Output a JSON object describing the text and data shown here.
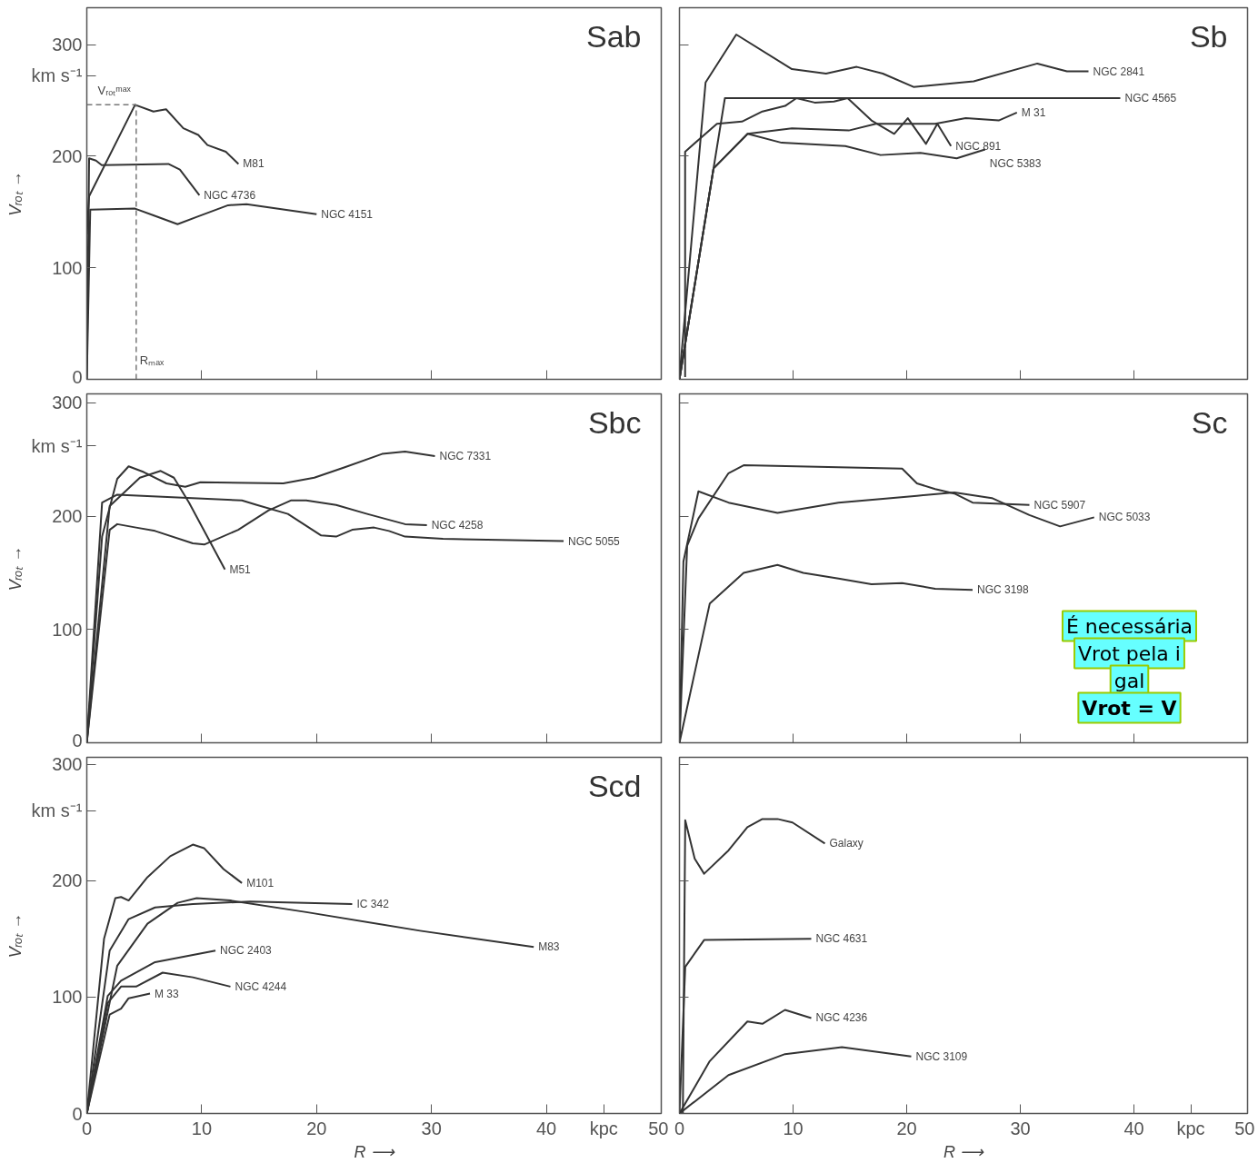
{
  "chart_data": [
    {
      "type": "line",
      "title": "Sab",
      "xlim": [
        0,
        50
      ],
      "ylim": [
        0,
        333
      ],
      "xticks": [
        10,
        20,
        30,
        40
      ],
      "yticks": [
        0,
        100,
        200,
        {
          "value": 272,
          "label": "km s⁻¹"
        },
        300
      ],
      "tick_labels": "y",
      "ylabel": "Vᵣₒₜ →",
      "line_style": "solid",
      "series": [
        {
          "name": "M81",
          "color": "#333333",
          "x": [
            0,
            0.2,
            4.2,
            5.8,
            6.9,
            8.4,
            9.7,
            10.5,
            12.1,
            13.2
          ],
          "values": [
            130,
            164,
            246,
            240,
            242,
            225,
            219,
            210,
            204,
            193
          ]
        },
        {
          "name": "NGC 4736",
          "color": "#333333",
          "x": [
            0,
            0.2,
            0.8,
            1.3,
            7.1,
            8.1,
            9.8
          ],
          "values": [
            0,
            198,
            196,
            192,
            193,
            188,
            165
          ]
        },
        {
          "name": "NGC 4151",
          "color": "#333333",
          "x": [
            0,
            0.3,
            4.2,
            5.8,
            7.9,
            9.7,
            12.3,
            13.9,
            20
          ],
          "values": [
            0,
            152,
            153,
            147,
            139,
            146,
            156,
            157,
            148
          ]
        }
      ],
      "ref_lines": [
        {
          "axis": "y",
          "value": 246,
          "label": "Vᵣₒₜᵐᵃˣ",
          "color": "#777777",
          "line_style": "dashed"
        },
        {
          "axis": "x",
          "value": 4.3,
          "label": "Rₘₐₓ",
          "color": "#777777",
          "line_style": "dashed"
        }
      ]
    },
    {
      "type": "line",
      "title": "Sb",
      "xlim": [
        0,
        50
      ],
      "ylim": [
        0,
        333
      ],
      "xticks": [
        10,
        20,
        30,
        40
      ],
      "yticks": [
        100,
        200,
        300
      ],
      "tick_labels": false,
      "line_style": "solid",
      "series": [
        {
          "name": "NGC 2841",
          "color": "#333333",
          "x": [
            0,
            2.3,
            5.0,
            9.9,
            12.9,
            15.6,
            17.9,
            20.6,
            25.9,
            31.5,
            34.1,
            36
          ],
          "values": [
            2,
            266,
            309,
            278,
            274,
            280,
            274,
            262,
            267,
            283,
            276,
            276
          ]
        },
        {
          "name": "NGC 4565",
          "color": "#333333",
          "x": [
            0,
            4.0,
            38.8
          ],
          "values": [
            0,
            252,
            252
          ]
        },
        {
          "name": "M 31",
          "color": "#333333",
          "x": [
            0,
            3.0,
            6.0,
            9.9,
            14.9,
            17.3,
            22.5,
            25.2,
            28.1,
            29.7
          ],
          "values": [
            0,
            189,
            220,
            225,
            223,
            229,
            229,
            234,
            232,
            239
          ]
        },
        {
          "name": "NGC 891",
          "color": "#333333",
          "x": [
            0.5,
            0.5,
            3.3,
            5.5,
            7.3,
            9.3,
            10.3,
            11.9,
            13.6,
            14.8,
            16.9,
            18.9,
            20.1,
            21.7,
            22.7,
            23.9
          ],
          "values": [
            2,
            204,
            229,
            231,
            240,
            245,
            252,
            248,
            249,
            252,
            232,
            220,
            234,
            211,
            229,
            209
          ]
        },
        {
          "name": "NGC 5383",
          "color": "#333333",
          "x": [
            0,
            3.0,
            6.0,
            9.0,
            14.6,
            17.7,
            21.2,
            24.4,
            26.9
          ],
          "values": [
            0,
            189,
            220,
            212,
            209,
            201,
            203,
            198,
            206
          ]
        }
      ]
    },
    {
      "type": "line",
      "title": "Sbc",
      "xlim": [
        0,
        50
      ],
      "ylim": [
        0,
        308
      ],
      "xticks": [
        10,
        20,
        30,
        40
      ],
      "yticks": [
        0,
        100,
        200,
        {
          "value": 262,
          "label": "km s⁻¹"
        },
        300
      ],
      "tick_labels": "y",
      "ylabel": "Vᵣₒₜ →",
      "line_style": "solid",
      "series": [
        {
          "name": "NGC 7331",
          "color": "#333333",
          "x": [
            0,
            1.33,
            2.65,
            3.64,
            4.95,
            6.93,
            8.57,
            9.89,
            17.1,
            19.8,
            22.4,
            25.7,
            27.7,
            30.3
          ],
          "values": [
            0,
            182,
            233,
            244,
            239,
            229,
            226,
            230,
            229,
            234,
            243,
            255,
            257,
            253
          ]
        },
        {
          "name": "NGC 4258",
          "color": "#333333",
          "x": [
            0,
            1.99,
            2.65,
            4.29,
            5.94,
            9.23,
            10.22,
            13.18,
            15.8,
            17.8,
            19.1,
            21.7,
            24.4,
            27.7,
            29.6
          ],
          "values": [
            0,
            188,
            193,
            190,
            187,
            176,
            175,
            188,
            205,
            214,
            214,
            210,
            202,
            193,
            192
          ]
        },
        {
          "name": "NGC 5055",
          "color": "#333333",
          "x": [
            0,
            1.33,
            2.65,
            13.5,
            14.8,
            17.5,
            20.4,
            21.7,
            23.1,
            25.0,
            26.3,
            27.7,
            31.0,
            41.5
          ],
          "values": [
            0,
            212,
            219,
            214,
            210,
            202,
            183,
            182,
            188,
            190,
            187,
            182,
            180,
            178
          ]
        },
        {
          "name": "M51",
          "color": "#333333",
          "x": [
            0,
            1.99,
            4.62,
            6.43,
            7.58,
            8.9,
            12.02
          ],
          "values": [
            0,
            209,
            234,
            240,
            234,
            212,
            153
          ]
        }
      ]
    },
    {
      "type": "line",
      "title": "Sc",
      "xlim": [
        0,
        50
      ],
      "ylim": [
        0,
        308
      ],
      "xticks": [
        10,
        20,
        30,
        40
      ],
      "yticks": [
        100,
        200,
        300
      ],
      "tick_labels": false,
      "line_style": "solid",
      "series": [
        {
          "name": "NGC 5907",
          "color": "#333333",
          "x": [
            0,
            0.68,
            1.67,
            4.32,
            5.65,
            19.6,
            20.9,
            22.5,
            24.2,
            25.8,
            30.8
          ],
          "values": [
            0,
            174,
            198,
            238,
            245,
            242,
            229,
            224,
            220,
            212,
            210
          ]
        },
        {
          "name": "NGC 5033",
          "color": "#333333",
          "x": [
            0,
            0.35,
            1.67,
            4.32,
            8.63,
            14.0,
            20.9,
            24.2,
            27.5,
            30.8,
            33.5,
            36.5
          ],
          "values": [
            0,
            160,
            222,
            212,
            203,
            212,
            218,
            221,
            216,
            201,
            191,
            199
          ]
        },
        {
          "name": "NGC 3198",
          "color": "#333333",
          "x": [
            0,
            2.67,
            5.65,
            8.63,
            10.9,
            14.0,
            16.9,
            19.6,
            22.5,
            25.8
          ],
          "values": [
            0,
            123,
            150,
            157,
            150,
            145,
            140,
            141,
            136,
            135
          ]
        }
      ],
      "annotations": [
        "É necessária",
        "Vrot pela i",
        "gal",
        "Vrot = V"
      ]
    },
    {
      "type": "line",
      "title": "Scd",
      "xlim": [
        0,
        50
      ],
      "ylim": [
        0,
        306
      ],
      "xticks": [
        0,
        10,
        20,
        30,
        40,
        {
          "value": 45,
          "label": "kpc"
        },
        50
      ],
      "yticks": [
        0,
        100,
        200,
        {
          "value": 260,
          "label": "km s⁻¹"
        },
        300
      ],
      "xlabel": "R ⟶",
      "ylabel": "Vᵣₒₜ →",
      "line_style": "solid",
      "series": [
        {
          "name": "M101",
          "color": "#333333",
          "x": [
            0,
            1.5,
            2.48,
            2.98,
            3.64,
            5.28,
            7.26,
            9.23,
            10.2,
            11.9,
            13.5
          ],
          "values": [
            0,
            150,
            185,
            186,
            183,
            203,
            221,
            231,
            228,
            210,
            198
          ]
        },
        {
          "name": "IC 342",
          "color": "#333333",
          "x": [
            0,
            1.99,
            3.64,
            5.94,
            9.23,
            14.2,
            23.1
          ],
          "values": [
            0,
            140,
            167,
            177,
            180,
            182,
            180
          ]
        },
        {
          "name": "M83",
          "color": "#333333",
          "x": [
            0,
            2.65,
            5.28,
            7.91,
            9.56,
            12.5,
            19.1,
            29.0,
            38.9
          ],
          "values": [
            0,
            127,
            163,
            181,
            185,
            183,
            173,
            157,
            143
          ]
        },
        {
          "name": "NGC 2403",
          "color": "#333333",
          "x": [
            0,
            1.82,
            2.98,
            5.94,
            11.2
          ],
          "values": [
            0,
            101,
            114,
            130,
            140
          ]
        },
        {
          "name": "NGC 4244",
          "color": "#333333",
          "x": [
            0,
            1.82,
            2.98,
            4.29,
            6.6,
            9.23,
            12.5
          ],
          "values": [
            0,
            95,
            109,
            109,
            121,
            117,
            109
          ]
        },
        {
          "name": "M 33",
          "color": "#333333",
          "x": [
            0,
            1.99,
            2.98,
            3.64,
            5.5
          ],
          "values": [
            0,
            85,
            90,
            99,
            103
          ]
        }
      ]
    },
    {
      "type": "line",
      "xlim": [
        0,
        50
      ],
      "ylim": [
        0,
        306
      ],
      "xticks": [
        0,
        10,
        20,
        30,
        40,
        {
          "value": 45,
          "label": "kpc"
        },
        50
      ],
      "yticks": [
        100,
        200,
        300
      ],
      "tick_labels": "x",
      "xlabel": "R ⟶",
      "line_style": "solid",
      "series": [
        {
          "name": "Galaxy",
          "color": "#333333",
          "x": [
            0.3,
            0.51,
            1.34,
            2.17,
            4.32,
            5.98,
            7.3,
            8.63,
            9.95,
            12.8
          ],
          "values": [
            0,
            252,
            219,
            206,
            226,
            246,
            253,
            253,
            250,
            232
          ]
        },
        {
          "name": "NGC 4631",
          "color": "#333333",
          "x": [
            0,
            0.51,
            2.17,
            11.6
          ],
          "values": [
            0,
            126,
            149,
            150
          ]
        },
        {
          "name": "NGC 4236",
          "color": "#333333",
          "x": [
            0,
            2.67,
            5.98,
            7.3,
            9.29,
            11.6
          ],
          "values": [
            0,
            45,
            79,
            77,
            89,
            82
          ]
        },
        {
          "name": "NGC 3109",
          "color": "#333333",
          "x": [
            0,
            4.32,
            9.29,
            14.3,
            20.4
          ],
          "values": [
            0,
            33,
            51,
            57,
            49
          ]
        }
      ]
    }
  ]
}
